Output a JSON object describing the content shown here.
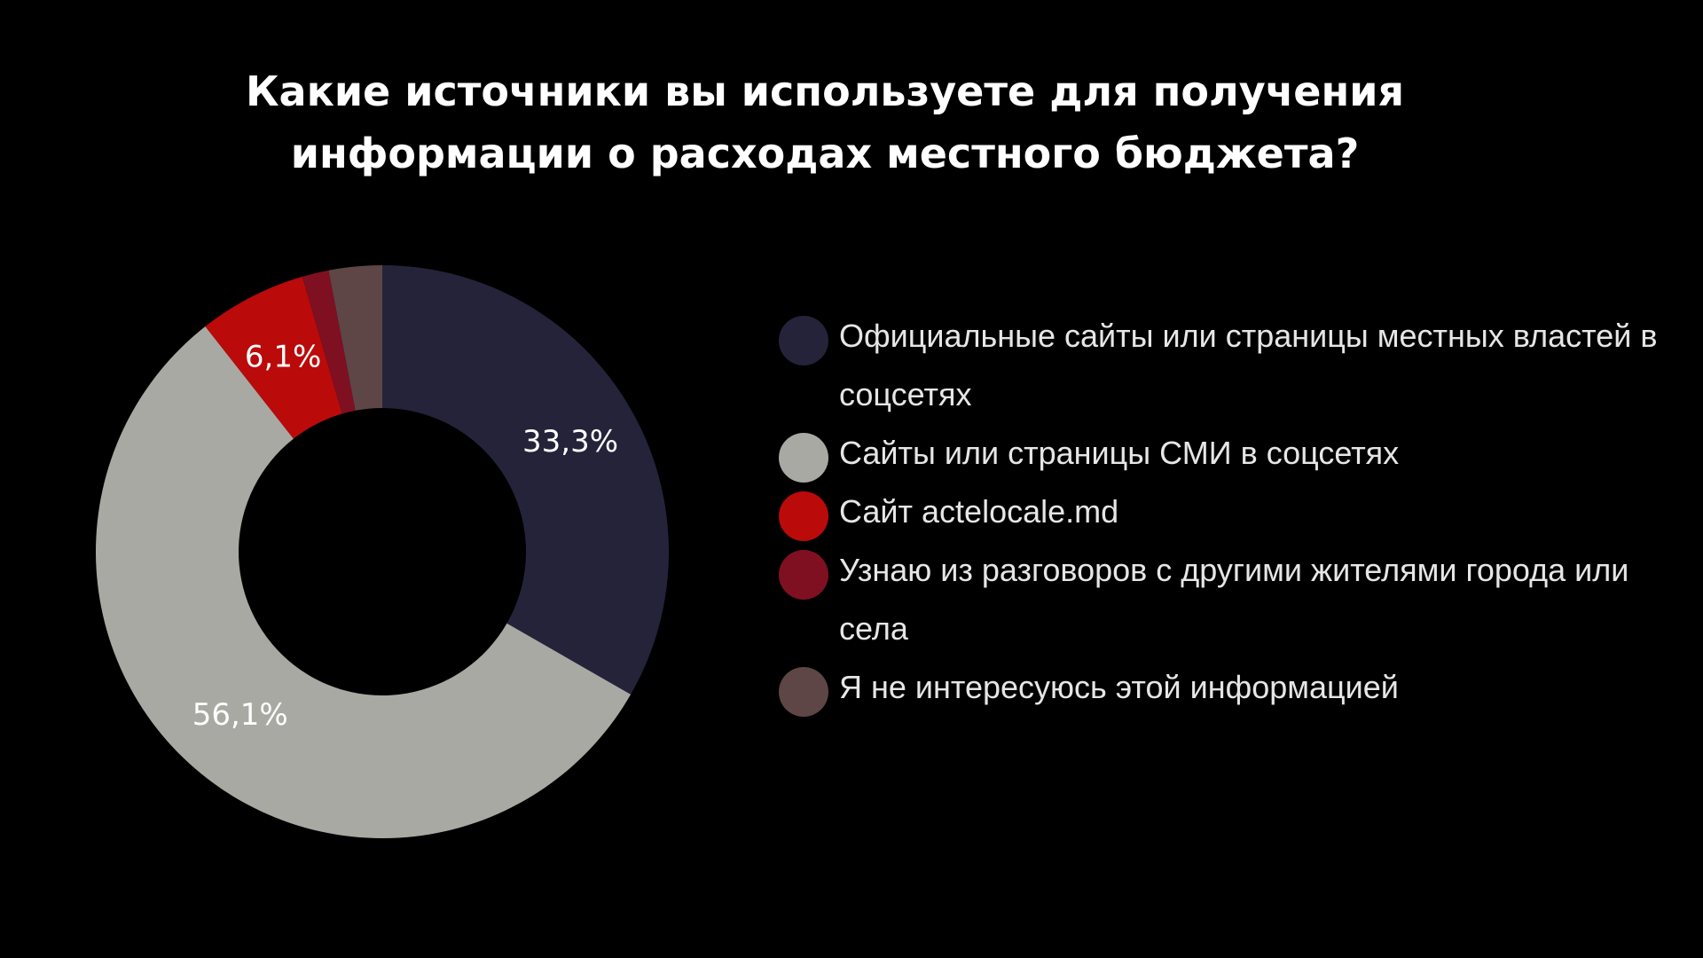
{
  "chart_data": {
    "type": "pie",
    "variant": "donut",
    "title": "Какие источники вы используете для получения информации о расходах местного бюджета?",
    "legend_position": "right",
    "slices": [
      {
        "label": "Официальные сайты или страницы местных властей в соцсетях",
        "value": 33.3,
        "value_label": "33,3%",
        "color": "#24233a"
      },
      {
        "label": "Сайты или страницы СМИ в соцсетях",
        "value": 56.1,
        "value_label": "56,1%",
        "color": "#a8a9a2"
      },
      {
        "label": "Сайт actelocale.md",
        "value": 6.1,
        "value_label": "6,1%",
        "color": "#bb0a0a"
      },
      {
        "label": "Узнаю из разговоров с другими жителями города или села",
        "value": 1.5,
        "value_label": "",
        "color": "#7e1022"
      },
      {
        "label": "Я не интересуюсь этой информацией",
        "value": 3.0,
        "value_label": "",
        "color": "#5e4646"
      }
    ]
  }
}
